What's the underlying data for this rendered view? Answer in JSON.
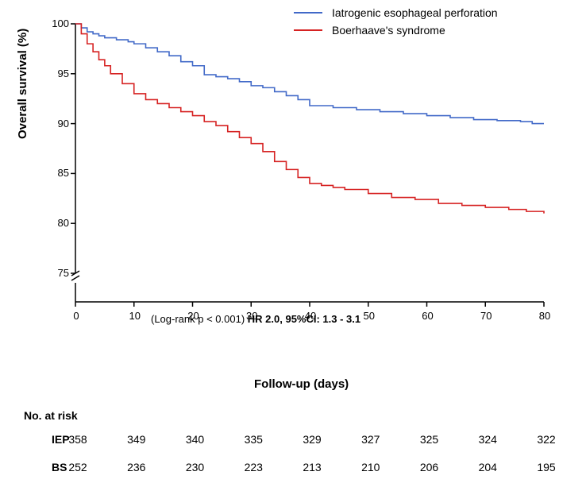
{
  "chart": {
    "type": "kaplan-meier",
    "background_color": "#ffffff",
    "axis_color": "#000000",
    "tick_length": 6,
    "font_family": "Arial",
    "x_axis": {
      "label": "Follow-up (days)",
      "label_fontsize": 15,
      "label_fontweight": "bold",
      "min": 0,
      "max": 80,
      "ticks": [
        0,
        10,
        20,
        30,
        40,
        50,
        60,
        70,
        80
      ],
      "tick_fontsize": 13
    },
    "y_axis": {
      "label": "Overall survival (%)",
      "label_fontsize": 15,
      "label_fontweight": "bold",
      "min": 70,
      "max": 100,
      "break": true,
      "ticks": [
        75,
        80,
        85,
        90,
        95,
        100
      ],
      "tick_fontsize": 13
    },
    "legend": {
      "position": "top-right",
      "fontsize": 14,
      "items": [
        {
          "label": "Iatrogenic esophageal perforation",
          "color": "#4169c8"
        },
        {
          "label": "Boerhaave's syndrome",
          "color": "#d62222"
        }
      ]
    },
    "series": [
      {
        "name": "IEP",
        "color": "#4169c8",
        "line_width": 1.6,
        "points": [
          [
            0,
            100
          ],
          [
            1,
            99.6
          ],
          [
            2,
            99.2
          ],
          [
            3,
            99.0
          ],
          [
            4,
            98.8
          ],
          [
            5,
            98.6
          ],
          [
            7,
            98.4
          ],
          [
            9,
            98.2
          ],
          [
            10,
            98.0
          ],
          [
            12,
            97.6
          ],
          [
            14,
            97.2
          ],
          [
            16,
            96.8
          ],
          [
            18,
            96.2
          ],
          [
            20,
            95.8
          ],
          [
            22,
            94.9
          ],
          [
            24,
            94.7
          ],
          [
            26,
            94.5
          ],
          [
            28,
            94.2
          ],
          [
            30,
            93.8
          ],
          [
            32,
            93.6
          ],
          [
            34,
            93.2
          ],
          [
            36,
            92.8
          ],
          [
            38,
            92.4
          ],
          [
            40,
            91.8
          ],
          [
            44,
            91.6
          ],
          [
            48,
            91.4
          ],
          [
            52,
            91.2
          ],
          [
            56,
            91.0
          ],
          [
            60,
            90.8
          ],
          [
            64,
            90.6
          ],
          [
            68,
            90.4
          ],
          [
            72,
            90.3
          ],
          [
            76,
            90.2
          ],
          [
            78,
            90.0
          ],
          [
            80,
            90.0
          ]
        ]
      },
      {
        "name": "BS",
        "color": "#d62222",
        "line_width": 1.6,
        "points": [
          [
            0,
            100
          ],
          [
            1,
            99.0
          ],
          [
            2,
            98.0
          ],
          [
            3,
            97.2
          ],
          [
            4,
            96.4
          ],
          [
            5,
            95.8
          ],
          [
            6,
            95.0
          ],
          [
            8,
            94.0
          ],
          [
            10,
            93.0
          ],
          [
            12,
            92.4
          ],
          [
            14,
            92.0
          ],
          [
            16,
            91.6
          ],
          [
            18,
            91.2
          ],
          [
            20,
            90.8
          ],
          [
            22,
            90.2
          ],
          [
            24,
            89.8
          ],
          [
            26,
            89.2
          ],
          [
            28,
            88.6
          ],
          [
            30,
            88.0
          ],
          [
            32,
            87.2
          ],
          [
            34,
            86.2
          ],
          [
            36,
            85.4
          ],
          [
            38,
            84.6
          ],
          [
            40,
            84.0
          ],
          [
            42,
            83.8
          ],
          [
            44,
            83.6
          ],
          [
            46,
            83.4
          ],
          [
            50,
            83.0
          ],
          [
            54,
            82.6
          ],
          [
            58,
            82.4
          ],
          [
            62,
            82.0
          ],
          [
            66,
            81.8
          ],
          [
            70,
            81.6
          ],
          [
            74,
            81.4
          ],
          [
            77,
            81.2
          ],
          [
            80,
            81.0
          ]
        ]
      }
    ],
    "stats_text": "(Log-rank p < 0.001) HR 2.0, 95%CI: 1.3 - 3.1",
    "stats_bold_part": "HR 2.0, 95%CI: 1.3 - 3.1",
    "stats_plain_part": "(Log-rank p < 0.001) ",
    "stats_fontsize": 13
  },
  "risk_table": {
    "title": "No. at risk",
    "title_fontsize": 14,
    "columns": [
      0,
      10,
      20,
      30,
      40,
      50,
      60,
      70,
      80
    ],
    "rows": [
      {
        "label": "IEP",
        "values": [
          358,
          349,
          340,
          335,
          329,
          327,
          325,
          324,
          322
        ]
      },
      {
        "label": "BS",
        "values": [
          252,
          236,
          230,
          223,
          213,
          210,
          206,
          204,
          195
        ]
      }
    ],
    "value_fontsize": 14,
    "label_fontsize": 14
  }
}
